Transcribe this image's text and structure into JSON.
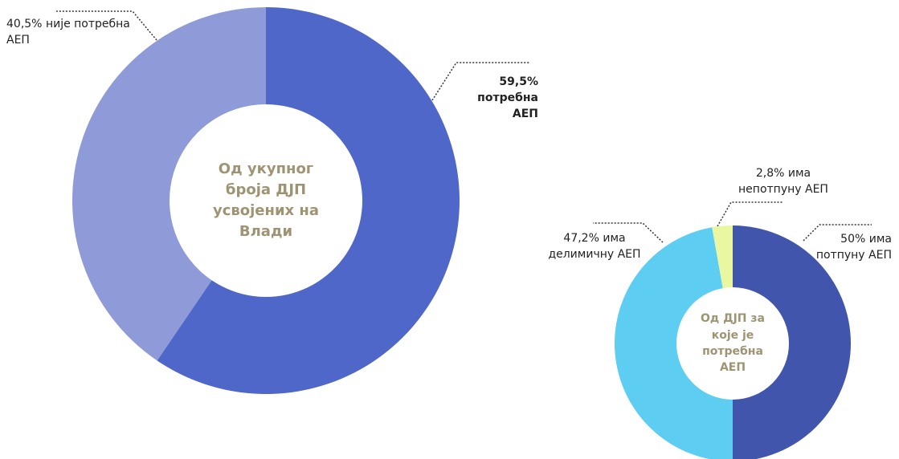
{
  "chart_data": [
    {
      "type": "pie",
      "center_text": "Од укупног броја ДЈП усвојених на Влади",
      "series": [
        {
          "name": "потребна АЕП",
          "color": "#4f67c9",
          "values": [
            59.5
          ],
          "value_labels": [
            "59,5%"
          ]
        },
        {
          "name": "није потребна АЕП",
          "color": "#8f9bd8",
          "values": [
            40.5
          ],
          "value_labels": [
            "40,5%"
          ]
        }
      ]
    },
    {
      "type": "pie",
      "center_text": "Од ДЈП за које је потребна АЕП",
      "series": [
        {
          "name": "има потпуну АЕП",
          "color": "#4155ad",
          "values": [
            50
          ],
          "value_labels": [
            "50%"
          ]
        },
        {
          "name": "има делимичну АЕП",
          "color": "#5ecdf2",
          "values": [
            47.2
          ],
          "value_labels": [
            "47,2%"
          ]
        },
        {
          "name": "има непотпуну АЕП",
          "color": "#e9f7a0",
          "values": [
            2.8
          ],
          "value_labels": [
            "2,8%"
          ]
        }
      ]
    }
  ]
}
